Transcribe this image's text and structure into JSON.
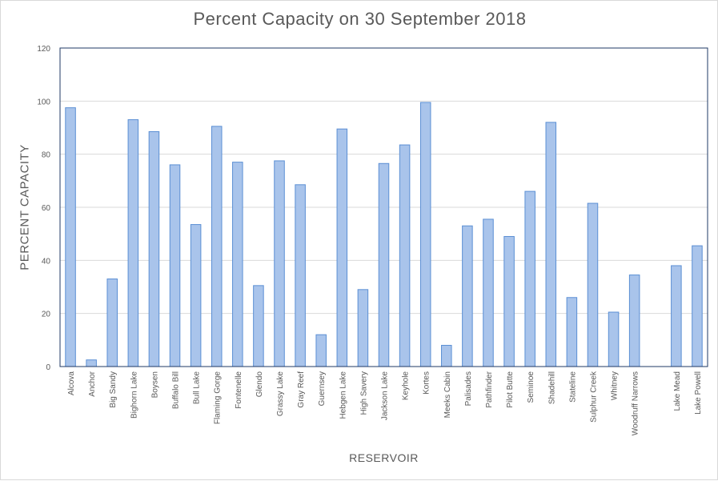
{
  "chart_data": {
    "type": "bar",
    "title": "Percent Capacity on 30 September 2018",
    "xlabel": "RESERVOIR",
    "ylabel": "PERCENT CAPACITY",
    "ylim": [
      0,
      120
    ],
    "yticks": [
      0,
      20,
      40,
      60,
      80,
      100,
      120
    ],
    "grid": true,
    "legend": "none",
    "categories": [
      "Alcova",
      "Anchor",
      "Big Sandy",
      "Bighorn Lake",
      "Boysen",
      "Buffalo Bill",
      "Bull Lake",
      "Flaming Gorge",
      "Fontenelle",
      "Glendo",
      "Grassy Lake",
      "Gray Reef",
      "Guernsey",
      "Hebgen Lake",
      "High Savery",
      "Jackson Lake",
      "Keyhole",
      "Kortes",
      "Meeks Cabin",
      "Palisades",
      "Pathfinder",
      "Pilot Butte",
      "Seminoe",
      "Shadehill",
      "Stateline",
      "Sulphur Creek",
      "Whitney",
      "Woodruff Narrows",
      "",
      "Lake Mead",
      "Lake Powell"
    ],
    "values": [
      97.5,
      2.5,
      33,
      93,
      88.5,
      76,
      53.5,
      90.5,
      77,
      30.5,
      77.5,
      68.5,
      12,
      89.5,
      29,
      76.5,
      83.5,
      99.5,
      8,
      53,
      55.5,
      49,
      66,
      92,
      26,
      61.5,
      20.5,
      34.5,
      null,
      38,
      45.5
    ],
    "colors": {
      "bar_fill": "#a9c4eb",
      "bar_stroke": "#5b8fd4",
      "grid": "#d9d9d9",
      "axis": "#1f3864"
    }
  }
}
